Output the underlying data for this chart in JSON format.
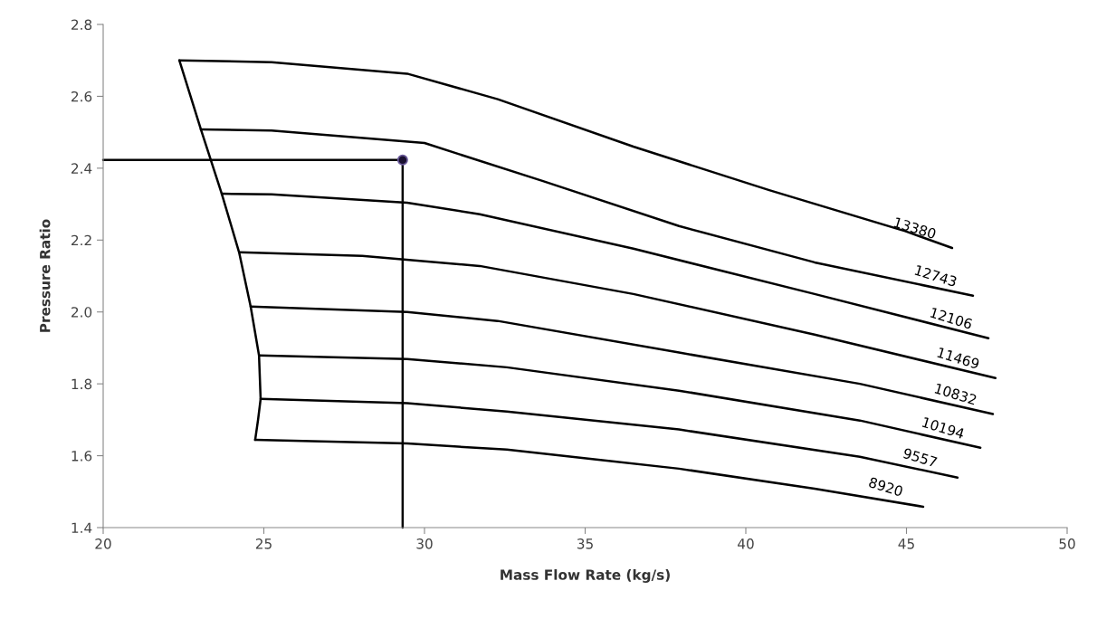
{
  "chart_data": {
    "type": "line",
    "xlabel": "Mass Flow Rate (kg/s)",
    "ylabel": "Pressure Ratio",
    "xlim": [
      20,
      50
    ],
    "ylim": [
      1.4,
      2.8
    ],
    "xticks": [
      20,
      25,
      30,
      35,
      40,
      45,
      50
    ],
    "yticks": [
      1.4,
      1.6,
      1.8,
      {
        "value": 2,
        "label": "2.0"
      },
      2.2,
      2.4,
      2.6,
      2.8
    ],
    "grid": false,
    "legend": false,
    "marker": "none",
    "line_style": "solid",
    "series": [
      {
        "name": "13380",
        "color": "#000000",
        "x": [
          22.37,
          25.24,
          29.46,
          32.28,
          36.5,
          40.73,
          44.96,
          46.42
        ],
        "values": [
          2.7,
          2.695,
          2.663,
          2.592,
          2.46,
          2.339,
          2.225,
          2.178
        ]
      },
      {
        "name": "12743",
        "color": "#000000",
        "x": [
          23.04,
          25.24,
          30.0,
          33.69,
          37.92,
          42.14,
          47.07
        ],
        "values": [
          2.508,
          2.505,
          2.47,
          2.364,
          2.239,
          2.138,
          2.045
        ]
      },
      {
        "name": "12106",
        "color": "#000000",
        "x": [
          23.69,
          25.24,
          29.46,
          31.72,
          36.5,
          42.14,
          47.55
        ],
        "values": [
          2.329,
          2.327,
          2.304,
          2.272,
          2.176,
          2.05,
          1.927
        ]
      },
      {
        "name": "11469",
        "color": "#000000",
        "x": [
          24.23,
          28.06,
          31.72,
          36.5,
          42.14,
          47.77
        ],
        "values": [
          2.166,
          2.156,
          2.128,
          2.05,
          1.937,
          1.816
        ]
      },
      {
        "name": "10832",
        "color": "#000000",
        "x": [
          24.59,
          29.46,
          32.28,
          37.92,
          43.55,
          47.69
        ],
        "values": [
          2.015,
          2.0,
          1.975,
          1.887,
          1.8,
          1.716
        ]
      },
      {
        "name": "10194",
        "color": "#000000",
        "x": [
          24.85,
          29.46,
          32.56,
          37.92,
          43.55,
          47.3
        ],
        "values": [
          1.879,
          1.869,
          1.846,
          1.781,
          1.698,
          1.622
        ]
      },
      {
        "name": "9557",
        "color": "#000000",
        "x": [
          24.9,
          29.46,
          32.56,
          37.92,
          43.55,
          46.59
        ],
        "values": [
          1.758,
          1.746,
          1.723,
          1.673,
          1.597,
          1.539
        ]
      },
      {
        "name": "8920",
        "color": "#000000",
        "x": [
          24.73,
          29.46,
          32.56,
          37.92,
          42.14,
          45.52
        ],
        "values": [
          1.644,
          1.634,
          1.617,
          1.564,
          1.508,
          1.458
        ]
      },
      {
        "color": "#000000",
        "x": [
          22.37,
          23.04,
          23.69,
          24.23,
          24.59,
          24.85,
          24.9,
          24.82,
          24.73
        ],
        "values": [
          2.7,
          2.508,
          2.329,
          2.166,
          2.015,
          1.879,
          1.758,
          1.7,
          1.644
        ]
      },
      {
        "color": "#000000",
        "x": [
          20,
          29.32,
          29.32
        ],
        "values": [
          2.423,
          2.423,
          1.4
        ]
      },
      {
        "type": "scatter",
        "color": "#1a1030",
        "marker": "circle",
        "x": [
          29.32
        ],
        "values": [
          2.423
        ]
      }
    ]
  }
}
